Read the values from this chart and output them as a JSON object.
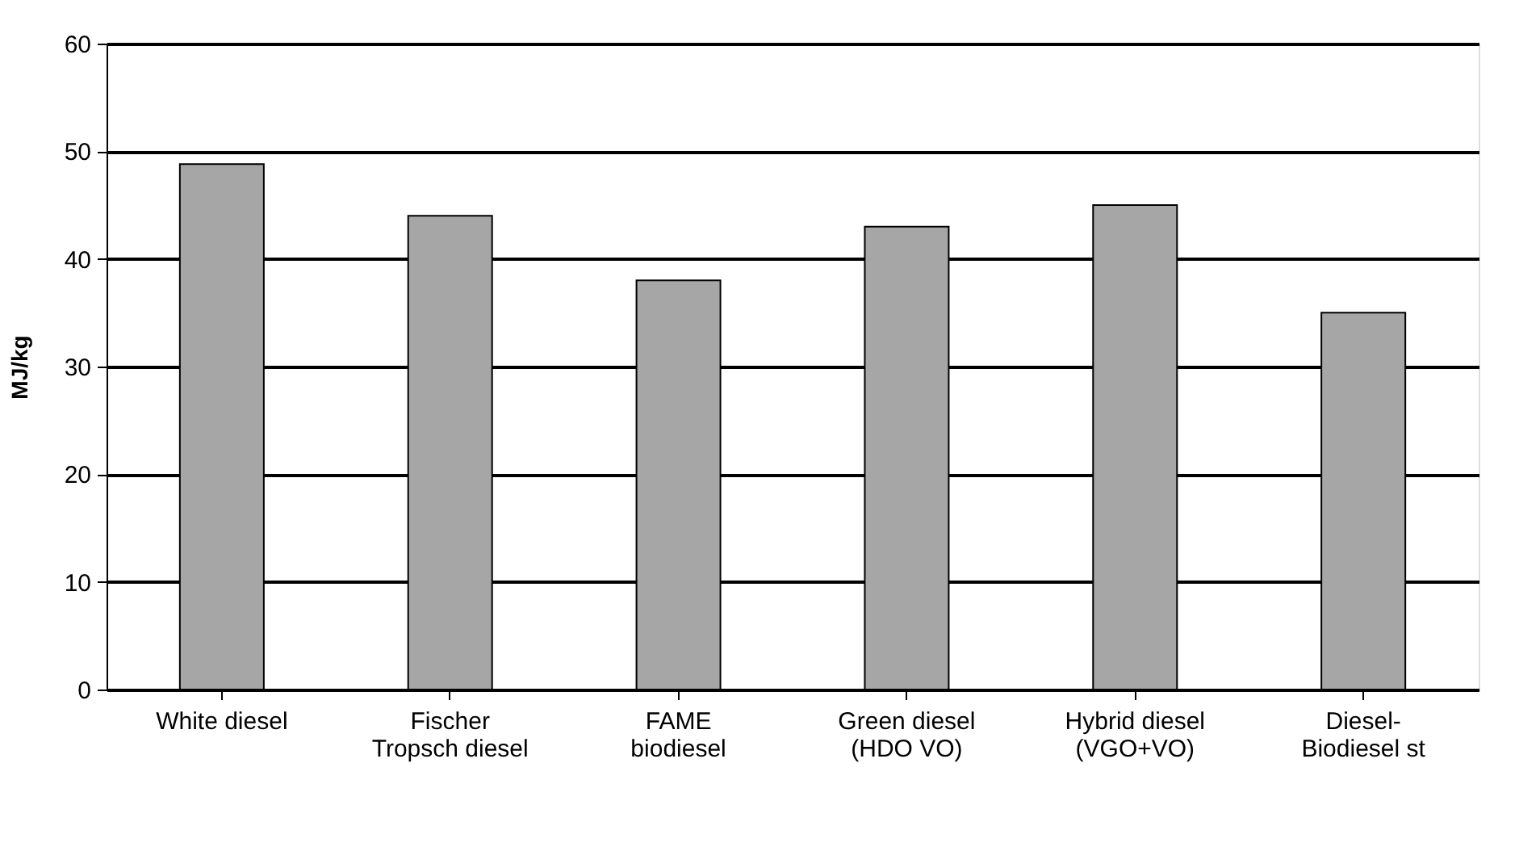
{
  "chart_data": {
    "type": "bar",
    "ylabel": "MJ/kg",
    "categories": [
      "White diesel",
      "Fischer\nTropsch diesel",
      "FAME\nbiodiesel",
      "Green diesel\n(HDO VO)",
      "Hybrid diesel\n(VGO+VO)",
      "Diesel-\nBiodiesel st"
    ],
    "values": [
      48.8,
      44,
      38,
      43,
      45,
      35
    ],
    "color": "#a6a6a6",
    "ylim": [
      0,
      60
    ],
    "yticks": [
      0,
      10,
      20,
      30,
      40,
      50,
      60
    ],
    "grid": "y"
  }
}
